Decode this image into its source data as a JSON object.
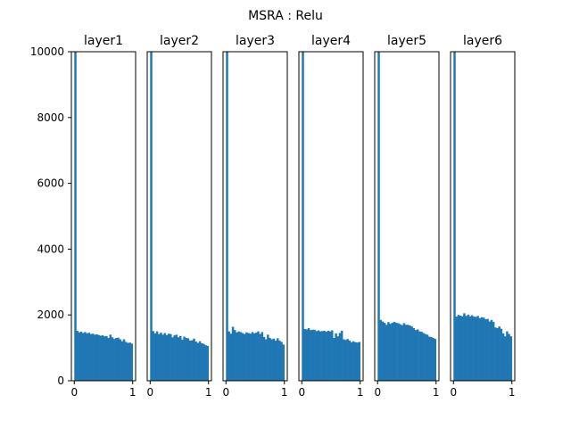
{
  "chart_data": {
    "type": "bar",
    "chart_kind": "histogram-grid",
    "title": "MSRA : Relu",
    "shared_y": true,
    "ylim": [
      0,
      10000
    ],
    "yticks": [
      0,
      2000,
      4000,
      6000,
      8000,
      10000
    ],
    "xlim": [
      -0.05,
      1.05
    ],
    "xticks": [
      0,
      1
    ],
    "bin_edges_range": [
      0,
      1
    ],
    "bins": 30,
    "bar_color": "#1f77b4",
    "grid": false,
    "legend": "none",
    "panels": [
      {
        "title": "layer1",
        "values": [
          10000,
          1520,
          1470,
          1490,
          1450,
          1480,
          1440,
          1460,
          1420,
          1430,
          1400,
          1410,
          1390,
          1370,
          1380,
          1350,
          1360,
          1300,
          1400,
          1320,
          1270,
          1300,
          1310,
          1260,
          1200,
          1260,
          1180,
          1150,
          1160,
          1130
        ]
      },
      {
        "title": "layer2",
        "values": [
          10000,
          1510,
          1440,
          1500,
          1420,
          1460,
          1400,
          1450,
          1390,
          1430,
          1420,
          1320,
          1380,
          1400,
          1320,
          1360,
          1250,
          1340,
          1300,
          1290,
          1220,
          1230,
          1280,
          1190,
          1150,
          1200,
          1140,
          1120,
          1080,
          1060
        ]
      },
      {
        "title": "layer3",
        "values": [
          10000,
          1500,
          1430,
          1640,
          1540,
          1470,
          1500,
          1480,
          1450,
          1420,
          1470,
          1450,
          1430,
          1480,
          1440,
          1460,
          1500,
          1420,
          1480,
          1330,
          1260,
          1400,
          1300,
          1260,
          1280,
          1220,
          1290,
          1220,
          1180,
          1100
        ]
      },
      {
        "title": "layer4",
        "values": [
          10000,
          1570,
          1560,
          1600,
          1540,
          1550,
          1550,
          1510,
          1530,
          1500,
          1510,
          1520,
          1490,
          1520,
          1500,
          1530,
          1300,
          1440,
          1350,
          1450,
          1520,
          1260,
          1240,
          1270,
          1220,
          1170,
          1200,
          1170,
          1160,
          1180
        ]
      },
      {
        "title": "layer5",
        "values": [
          10000,
          1850,
          1800,
          1760,
          1700,
          1780,
          1730,
          1760,
          1790,
          1760,
          1750,
          1720,
          1690,
          1750,
          1700,
          1700,
          1680,
          1650,
          1600,
          1540,
          1560,
          1500,
          1490,
          1450,
          1420,
          1400,
          1340,
          1330,
          1300,
          1270
        ]
      },
      {
        "title": "layer6",
        "values": [
          10000,
          1950,
          2000,
          1980,
          1960,
          2050,
          1970,
          2010,
          1960,
          1990,
          1950,
          1940,
          1970,
          1900,
          1930,
          1920,
          1870,
          1880,
          1800,
          1850,
          1790,
          1620,
          1600,
          1650,
          1580,
          1440,
          1350,
          1500,
          1420,
          1350
        ]
      }
    ]
  }
}
